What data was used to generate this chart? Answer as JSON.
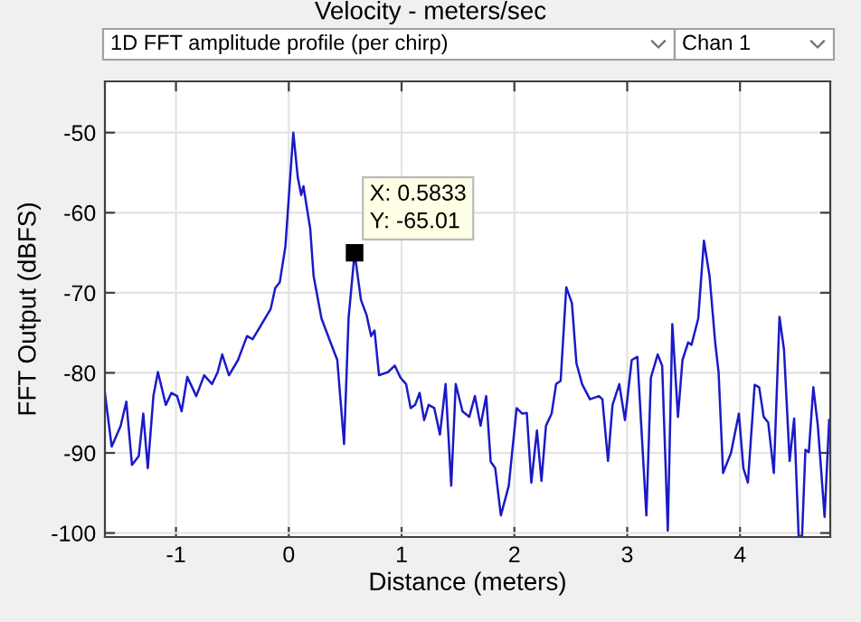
{
  "chart_data": {
    "type": "line",
    "title": "Velocity - meters/sec",
    "xlabel": "Distance (meters)",
    "ylabel": "FFT Output (dBFS)",
    "annotations": [
      "1D FFT amplitude profile (per chirp)",
      "Chan 1",
      {
        "text": "X: 0.5833\nY: -65.01",
        "x": 0.5833,
        "y": -65.01
      }
    ],
    "xlim": [
      -1.63,
      4.8
    ],
    "ylim": [
      -100.5,
      -43.6
    ],
    "xticks": [
      -1,
      0,
      1,
      2,
      3,
      4
    ],
    "yticks": [
      -100,
      -90,
      -80,
      -70,
      -60,
      -50
    ],
    "grid": true,
    "legend": false,
    "marker": "none",
    "line_style": "solid",
    "series": [
      {
        "color": "#1a1ac8",
        "x": [
          -1.63,
          -1.57,
          -1.49,
          -1.44,
          -1.39,
          -1.33,
          -1.29,
          -1.25,
          -1.2,
          -1.16,
          -1.09,
          -1.04,
          -0.99,
          -0.95,
          -0.9,
          -0.82,
          -0.75,
          -0.68,
          -0.63,
          -0.59,
          -0.53,
          -0.45,
          -0.37,
          -0.32,
          -0.24,
          -0.16,
          -0.12,
          -0.08,
          -0.03,
          0.04,
          0.08,
          0.11,
          0.13,
          0.19,
          0.22,
          0.29,
          0.37,
          0.43,
          0.49,
          0.53,
          0.5833,
          0.64,
          0.69,
          0.73,
          0.76,
          0.8,
          0.88,
          0.94,
          0.99,
          1.04,
          1.08,
          1.12,
          1.16,
          1.2,
          1.24,
          1.29,
          1.34,
          1.39,
          1.44,
          1.48,
          1.54,
          1.6,
          1.65,
          1.7,
          1.75,
          1.79,
          1.83,
          1.88,
          1.95,
          2.02,
          2.07,
          2.11,
          2.15,
          2.2,
          2.24,
          2.28,
          2.33,
          2.37,
          2.41,
          2.46,
          2.51,
          2.55,
          2.6,
          2.67,
          2.75,
          2.78,
          2.83,
          2.87,
          2.93,
          2.98,
          3.04,
          3.09,
          3.17,
          3.21,
          3.27,
          3.31,
          3.36,
          3.4,
          3.45,
          3.49,
          3.54,
          3.57,
          3.63,
          3.68,
          3.73,
          3.78,
          3.81,
          3.85,
          3.92,
          3.99,
          4.03,
          4.07,
          4.13,
          4.17,
          4.21,
          4.25,
          4.3,
          4.35,
          4.39,
          4.44,
          4.48,
          4.52,
          4.55,
          4.58,
          4.61,
          4.65,
          4.69,
          4.75,
          4.79
        ],
        "values": [
          -82.5,
          -89.2,
          -86.6,
          -83.6,
          -91.5,
          -90.4,
          -85.1,
          -91.9,
          -82.9,
          -79.9,
          -84.0,
          -82.5,
          -82.9,
          -84.8,
          -80.5,
          -82.9,
          -80.3,
          -81.4,
          -79.9,
          -77.7,
          -80.3,
          -78.4,
          -75.4,
          -75.8,
          -73.9,
          -72.0,
          -69.4,
          -68.7,
          -64.2,
          -50.0,
          -55.6,
          -57.8,
          -56.7,
          -62.0,
          -67.9,
          -73.2,
          -76.2,
          -78.4,
          -88.9,
          -73.2,
          -65.01,
          -70.9,
          -72.8,
          -75.4,
          -74.7,
          -80.3,
          -79.9,
          -79.1,
          -80.6,
          -81.4,
          -84.4,
          -84.0,
          -82.5,
          -85.9,
          -84.0,
          -84.4,
          -87.7,
          -81.4,
          -94.1,
          -81.4,
          -84.8,
          -85.5,
          -82.9,
          -86.6,
          -82.9,
          -91.1,
          -91.9,
          -97.8,
          -94.1,
          -84.4,
          -85.1,
          -85.0,
          -93.7,
          -87.2,
          -93.5,
          -86.6,
          -85.1,
          -81.4,
          -81.0,
          -69.3,
          -71.3,
          -78.8,
          -81.4,
          -83.3,
          -82.9,
          -83.3,
          -91.0,
          -84.0,
          -81.4,
          -85.9,
          -78.4,
          -78.0,
          -97.8,
          -80.6,
          -77.7,
          -79.1,
          -99.7,
          -73.9,
          -85.5,
          -78.4,
          -76.2,
          -76.5,
          -73.2,
          -63.5,
          -67.9,
          -76.2,
          -79.9,
          -92.5,
          -90.0,
          -85.1,
          -91.9,
          -93.7,
          -81.5,
          -81.8,
          -85.5,
          -86.2,
          -92.5,
          -73.0,
          -77.1,
          -91.0,
          -85.7,
          -100.4,
          -100.4,
          -89.6,
          -89.9,
          -81.8,
          -86.6,
          -98.0,
          -85.9
        ]
      }
    ]
  }
}
